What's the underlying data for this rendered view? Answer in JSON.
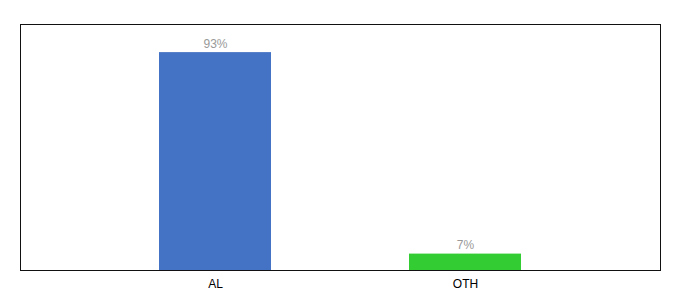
{
  "chart_data": {
    "type": "bar",
    "categories": [
      "AL",
      "OTH"
    ],
    "values": [
      93,
      7
    ],
    "value_labels": [
      "93%",
      "7%"
    ],
    "colors": [
      "#4472c4",
      "#33cc33"
    ],
    "ylim": [
      0,
      105
    ],
    "data_labels": true,
    "tick_labels": "x",
    "grid": false
  }
}
